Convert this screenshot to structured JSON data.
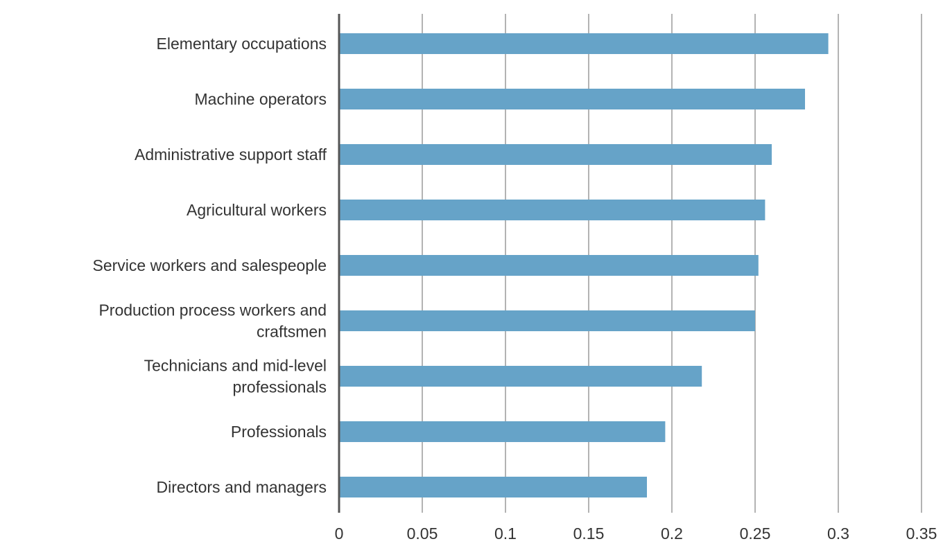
{
  "chart_data": {
    "type": "bar",
    "orientation": "horizontal",
    "title": "",
    "xlabel": "",
    "ylabel": "",
    "categories": [
      "Elementary occupations",
      "Machine operators",
      "Administrative support staff",
      "Agricultural workers",
      "Service workers and salespeople",
      "Production process workers and craftsmen",
      "Technicians and mid-level professionals",
      "Professionals",
      "Directors and managers"
    ],
    "category_lines": [
      [
        "Elementary occupations"
      ],
      [
        "Machine operators"
      ],
      [
        "Administrative support staff"
      ],
      [
        "Agricultural workers"
      ],
      [
        "Service workers and salespeople"
      ],
      [
        "Production process workers and",
        "craftsmen"
      ],
      [
        "Technicians and mid-level",
        "professionals"
      ],
      [
        "Professionals"
      ],
      [
        "Directors and managers"
      ]
    ],
    "values": [
      0.294,
      0.28,
      0.26,
      0.256,
      0.252,
      0.25,
      0.218,
      0.196,
      0.185
    ],
    "xlim": [
      0,
      0.35
    ],
    "xticks": [
      "0",
      "0.05",
      "0.1",
      "0.15",
      "0.2",
      "0.25",
      "0.3",
      "0.35"
    ],
    "xtick_values": [
      0,
      0.05,
      0.1,
      0.15,
      0.2,
      0.25,
      0.3,
      0.35
    ],
    "grid": true,
    "legend": "none",
    "colors": {
      "bar": "#66a3c8",
      "grid": "#b3b3b3",
      "axis": "#555555"
    }
  }
}
